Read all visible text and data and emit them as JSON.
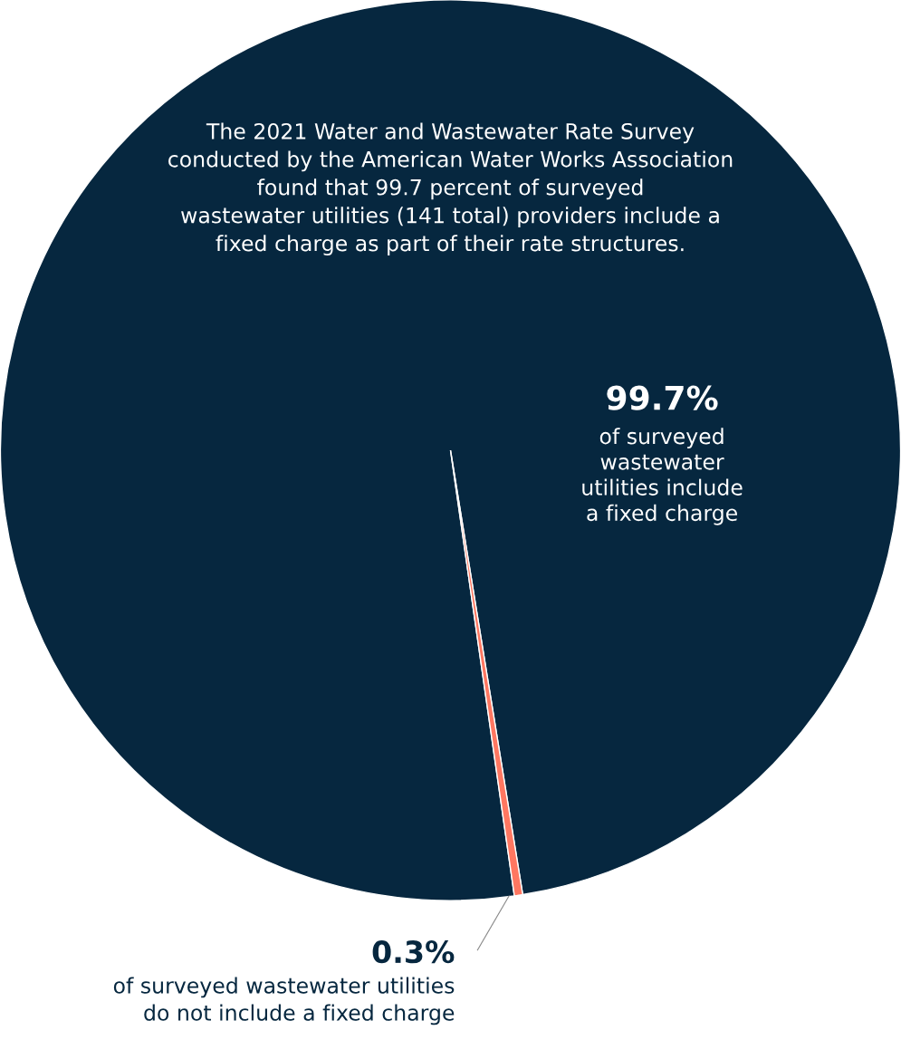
{
  "chart_data": {
    "type": "pie",
    "categories": [
      "of surveyed\nwastewater\nutilities include\na fixed charge",
      "of surveyed wastewater utilities\ndo not include a fixed charge"
    ],
    "values": [
      99.7,
      0.3
    ],
    "value_labels": [
      "99.7%",
      "0.3%"
    ],
    "colors": [
      "#06273f",
      "#ff7761"
    ],
    "annotations": [
      "The 2021 Water and Wastewater Rate Survey\nconducted by the American Water Works Association\nfound that 99.7 percent of surveyed\nwastewater utilities (141 total) providers include a\nfixed charge as part of their rate structures."
    ],
    "legend": false
  }
}
